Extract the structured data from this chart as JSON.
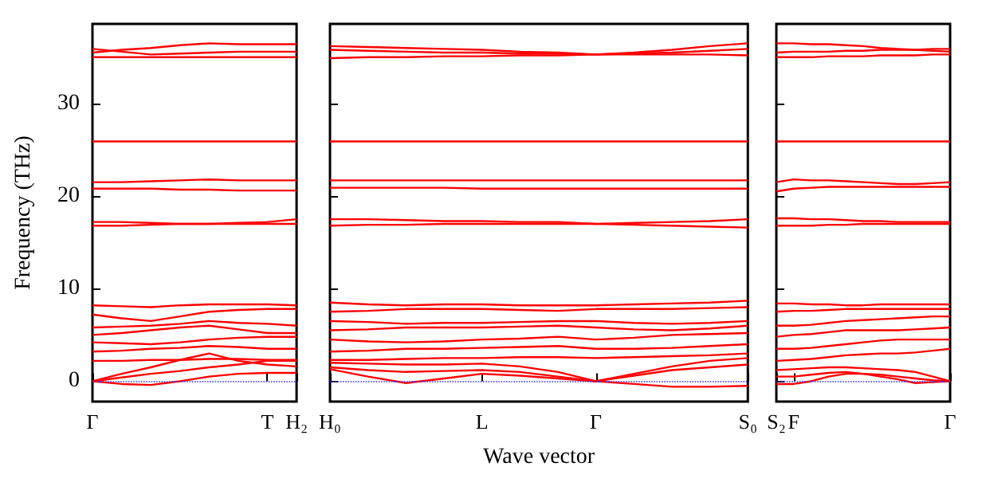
{
  "chart_data": [
    {
      "type": "line",
      "ylabel": "Frequency (THz)",
      "categories": [
        "Γ",
        null,
        null,
        null,
        null,
        null,
        "T",
        "H₂"
      ],
      "ylim": [
        -2.2,
        38.6
      ],
      "yticks": [
        0,
        10,
        20,
        30
      ],
      "marker": "none",
      "ref_lines": [
        {
          "axis": "y",
          "value": 0,
          "color": "#3333ff",
          "line_style": "dotted"
        }
      ],
      "series": [
        {
          "color": "#ff0000",
          "values": [
            0,
            -0.3,
            -0.4,
            0,
            0.5,
            0.8,
            0.9,
            0.9
          ]
        },
        {
          "color": "#ff0000",
          "values": [
            0,
            0.4,
            0.8,
            1.1,
            1.5,
            1.8,
            2.2,
            2.2
          ]
        },
        {
          "color": "#ff0000",
          "values": [
            0,
            0.8,
            1.5,
            2.3,
            3,
            2.2,
            1.8,
            1.6
          ]
        },
        {
          "color": "#ff0000",
          "values": [
            2.2,
            2.2,
            2.3,
            2.3,
            2.4,
            2.4,
            2.3,
            2.3
          ]
        },
        {
          "color": "#ff0000",
          "values": [
            3.2,
            3.3,
            3.5,
            3.6,
            3.8,
            3.7,
            3.5,
            3.5
          ]
        },
        {
          "color": "#ff0000",
          "values": [
            4.2,
            4.1,
            4,
            4.2,
            4.5,
            4.7,
            4.8,
            4.8
          ]
        },
        {
          "color": "#ff0000",
          "values": [
            5,
            5.2,
            5.5,
            5.8,
            6,
            5.6,
            5.2,
            5.2
          ]
        },
        {
          "color": "#ff0000",
          "values": [
            5.8,
            5.9,
            6,
            6.2,
            6.5,
            6.3,
            6.2,
            6
          ]
        },
        {
          "color": "#ff0000",
          "values": [
            7.2,
            6.8,
            6.5,
            7,
            7.5,
            7.7,
            7.8,
            7.8
          ]
        },
        {
          "color": "#ff0000",
          "values": [
            8.2,
            8.1,
            8,
            8.2,
            8.3,
            8.3,
            8.3,
            8.2
          ]
        },
        {
          "color": "#ff0000",
          "values": [
            16.8,
            16.8,
            16.9,
            17,
            17,
            17.1,
            17.2,
            17.5
          ]
        },
        {
          "color": "#ff0000",
          "values": [
            17.2,
            17.2,
            17.1,
            17,
            17,
            17,
            17,
            17
          ]
        },
        {
          "color": "#ff0000",
          "values": [
            20.8,
            20.8,
            20.8,
            20.7,
            20.7,
            20.6,
            20.6,
            20.6
          ]
        },
        {
          "color": "#ff0000",
          "values": [
            21.5,
            21.5,
            21.6,
            21.7,
            21.8,
            21.7,
            21.7,
            21.7
          ]
        },
        {
          "color": "#ff0000",
          "values": [
            25.9,
            25.9,
            25.9,
            25.9,
            25.9,
            25.9,
            25.9,
            25.9
          ]
        },
        {
          "color": "#ff0000",
          "values": [
            35,
            35,
            35,
            35,
            35,
            35,
            35,
            35
          ]
        },
        {
          "color": "#ff0000",
          "values": [
            35.5,
            35.8,
            36,
            36.3,
            36.5,
            36.4,
            36.4,
            36.4
          ]
        },
        {
          "color": "#ff0000",
          "values": [
            35.9,
            35.6,
            35.3,
            35.4,
            35.5,
            35.6,
            35.6,
            35.6
          ]
        }
      ]
    },
    {
      "type": "line",
      "xlabel": "Wave vector",
      "categories": [
        "H₀",
        null,
        null,
        null,
        "L",
        null,
        null,
        "Γ",
        null,
        null,
        null,
        "S₀"
      ],
      "ylim": [
        -2.2,
        38.6
      ],
      "yticks": [
        0,
        10,
        20,
        30
      ],
      "tick_labels": "x",
      "marker": "none",
      "ref_lines": [
        {
          "axis": "y",
          "value": 0,
          "color": "#3333ff",
          "line_style": "dotted"
        }
      ],
      "series": [
        {
          "color": "#ff0000",
          "values": [
            1.3,
            0.5,
            -0.2,
            0.3,
            0.8,
            0.6,
            0.3,
            0,
            -0.3,
            -0.6,
            -0.6,
            -0.5
          ]
        },
        {
          "color": "#ff0000",
          "values": [
            1.5,
            1.2,
            1,
            1.1,
            1.2,
            1,
            0.5,
            0,
            0.6,
            1.2,
            1.5,
            1.8
          ]
        },
        {
          "color": "#ff0000",
          "values": [
            2,
            1.9,
            1.8,
            1.8,
            1.9,
            1.6,
            1,
            0,
            0.8,
            1.6,
            2.2,
            2.5
          ]
        },
        {
          "color": "#ff0000",
          "values": [
            2.3,
            2.3,
            2.4,
            2.5,
            2.5,
            2.6,
            2.6,
            2.5,
            2.6,
            2.7,
            2.8,
            3
          ]
        },
        {
          "color": "#ff0000",
          "values": [
            3.2,
            3.3,
            3.5,
            3.5,
            3.6,
            3.7,
            3.8,
            3.5,
            3.5,
            3.6,
            3.8,
            4
          ]
        },
        {
          "color": "#ff0000",
          "values": [
            4.5,
            4.3,
            4.2,
            4.3,
            4.5,
            4.6,
            4.8,
            4.5,
            4.7,
            5,
            5.1,
            5.2
          ]
        },
        {
          "color": "#ff0000",
          "values": [
            5.5,
            5.6,
            5.8,
            5.8,
            5.8,
            5.9,
            6,
            5.8,
            5.6,
            5.5,
            5.7,
            6
          ]
        },
        {
          "color": "#ff0000",
          "values": [
            6.5,
            6.4,
            6.2,
            6.3,
            6.3,
            6.4,
            6.5,
            6.5,
            6.3,
            6.2,
            6.3,
            6.5
          ]
        },
        {
          "color": "#ff0000",
          "values": [
            7.5,
            7.6,
            7.8,
            7.8,
            7.8,
            7.7,
            7.6,
            7.8,
            7.8,
            7.8,
            7.9,
            8
          ]
        },
        {
          "color": "#ff0000",
          "values": [
            8.5,
            8.3,
            8.2,
            8.3,
            8.3,
            8.2,
            8.2,
            8.2,
            8.3,
            8.4,
            8.5,
            8.7
          ]
        },
        {
          "color": "#ff0000",
          "values": [
            16.8,
            16.9,
            16.9,
            17,
            17,
            17,
            17,
            17,
            17.1,
            17.2,
            17.3,
            17.5
          ]
        },
        {
          "color": "#ff0000",
          "values": [
            17.5,
            17.5,
            17.4,
            17.3,
            17.3,
            17.2,
            17.2,
            17,
            16.9,
            16.8,
            16.7,
            16.6
          ]
        },
        {
          "color": "#ff0000",
          "values": [
            20.9,
            20.9,
            20.9,
            20.9,
            20.8,
            20.8,
            20.8,
            20.8,
            20.8,
            20.8,
            20.8,
            20.8
          ]
        },
        {
          "color": "#ff0000",
          "values": [
            21.7,
            21.7,
            21.7,
            21.7,
            21.7,
            21.7,
            21.7,
            21.7,
            21.7,
            21.7,
            21.7,
            21.7
          ]
        },
        {
          "color": "#ff0000",
          "values": [
            25.9,
            25.9,
            25.9,
            25.9,
            25.9,
            25.9,
            25.9,
            25.9,
            25.9,
            25.9,
            25.9,
            25.9
          ]
        },
        {
          "color": "#ff0000",
          "values": [
            34.9,
            35,
            35,
            35.1,
            35.1,
            35.2,
            35.2,
            35.3,
            35.3,
            35.3,
            35.3,
            35.2
          ]
        },
        {
          "color": "#ff0000",
          "values": [
            35.8,
            35.7,
            35.6,
            35.5,
            35.5,
            35.4,
            35.4,
            35.3,
            35.5,
            35.8,
            36.2,
            36.5
          ]
        },
        {
          "color": "#ff0000",
          "values": [
            36.2,
            36.1,
            36,
            35.9,
            35.8,
            35.6,
            35.5,
            35.3,
            35.4,
            35.5,
            35.7,
            35.9
          ]
        }
      ]
    },
    {
      "type": "line",
      "categories": [
        "S₂",
        "F",
        null,
        null,
        null,
        null,
        null,
        null,
        null,
        null,
        "Γ"
      ],
      "ylim": [
        -2.2,
        38.6
      ],
      "yticks": [
        0,
        10,
        20,
        30
      ],
      "tick_labels": "x",
      "marker": "none",
      "ref_lines": [
        {
          "axis": "y",
          "value": 0,
          "color": "#3333ff",
          "line_style": "dotted"
        }
      ],
      "series": [
        {
          "color": "#ff0000",
          "values": [
            -0.3,
            -0.3,
            0,
            0.5,
            0.8,
            0.8,
            0.7,
            0.5,
            0.3,
            0.1,
            0
          ]
        },
        {
          "color": "#ff0000",
          "values": [
            0.5,
            0.5,
            0.7,
            0.9,
            1,
            0.8,
            0.5,
            0.2,
            -0.2,
            -0.1,
            0
          ]
        },
        {
          "color": "#ff0000",
          "values": [
            1.2,
            1.3,
            1.4,
            1.5,
            1.5,
            1.4,
            1.3,
            1.2,
            1,
            0.5,
            0
          ]
        },
        {
          "color": "#ff0000",
          "values": [
            2.2,
            2.3,
            2.4,
            2.6,
            2.8,
            2.9,
            3,
            3,
            3.1,
            3.3,
            3.5
          ]
        },
        {
          "color": "#ff0000",
          "values": [
            3.5,
            3.5,
            3.6,
            3.8,
            4,
            4.2,
            4.4,
            4.5,
            4.5,
            4.5,
            4.5
          ]
        },
        {
          "color": "#ff0000",
          "values": [
            4.8,
            5,
            5.1,
            5.3,
            5.5,
            5.5,
            5.5,
            5.5,
            5.6,
            5.7,
            5.8
          ]
        },
        {
          "color": "#ff0000",
          "values": [
            6,
            6,
            6.1,
            6.3,
            6.5,
            6.6,
            6.7,
            6.8,
            6.9,
            7,
            7
          ]
        },
        {
          "color": "#ff0000",
          "values": [
            7.5,
            7.6,
            7.6,
            7.7,
            7.8,
            7.8,
            7.8,
            7.8,
            7.8,
            7.8,
            7.8
          ]
        },
        {
          "color": "#ff0000",
          "values": [
            8.4,
            8.4,
            8.3,
            8.3,
            8.2,
            8.2,
            8.3,
            8.3,
            8.3,
            8.3,
            8.3
          ]
        },
        {
          "color": "#ff0000",
          "values": [
            16.8,
            16.8,
            16.8,
            16.9,
            16.9,
            17,
            17,
            17,
            17,
            17,
            17
          ]
        },
        {
          "color": "#ff0000",
          "values": [
            17.6,
            17.6,
            17.5,
            17.5,
            17.4,
            17.3,
            17.3,
            17.2,
            17.2,
            17.2,
            17.2
          ]
        },
        {
          "color": "#ff0000",
          "values": [
            20.5,
            20.8,
            20.9,
            21,
            21,
            21,
            21,
            21,
            21,
            21,
            21
          ]
        },
        {
          "color": "#ff0000",
          "values": [
            21.5,
            21.8,
            21.7,
            21.7,
            21.6,
            21.5,
            21.4,
            21.3,
            21.3,
            21.4,
            21.5
          ]
        },
        {
          "color": "#ff0000",
          "values": [
            25.9,
            25.9,
            25.9,
            25.9,
            25.9,
            25.9,
            25.9,
            25.9,
            25.9,
            25.9,
            25.9
          ]
        },
        {
          "color": "#ff0000",
          "values": [
            35,
            35,
            35,
            35.1,
            35.1,
            35.1,
            35.2,
            35.2,
            35.2,
            35.3,
            35.3
          ]
        },
        {
          "color": "#ff0000",
          "values": [
            36.5,
            36.5,
            36.4,
            36.4,
            36.3,
            36.2,
            36,
            35.9,
            35.8,
            35.7,
            35.6
          ]
        },
        {
          "color": "#ff0000",
          "values": [
            35.5,
            35.6,
            35.6,
            35.6,
            35.7,
            35.7,
            35.8,
            35.8,
            35.8,
            35.9,
            35.9
          ]
        }
      ]
    }
  ]
}
